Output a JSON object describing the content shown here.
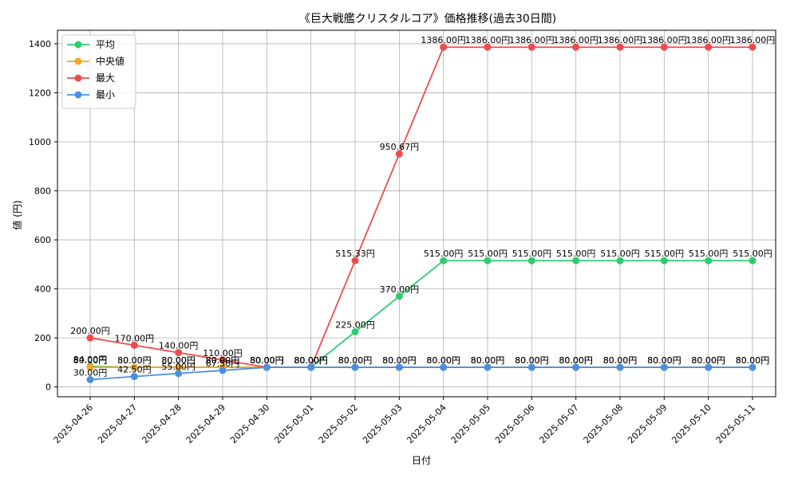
{
  "chart_data": {
    "type": "line",
    "title": "《巨大戦艦クリスタルコア》価格推移(過去30日間)",
    "xlabel": "日付",
    "ylabel": "値 (円)",
    "ylim": [
      -40,
      1455
    ],
    "yticks": [
      0,
      200,
      400,
      600,
      800,
      1000,
      1200,
      1400
    ],
    "grid": true,
    "legend_position": "top-left",
    "unit_suffix": "円",
    "categories": [
      "2025-04-26",
      "2025-04-27",
      "2025-04-28",
      "2025-04-29",
      "2025-04-30",
      "2025-05-01",
      "2025-05-02",
      "2025-05-03",
      "2025-05-04",
      "2025-05-05",
      "2025-05-06",
      "2025-05-07",
      "2025-05-08",
      "2025-05-09",
      "2025-05-10",
      "2025-05-11"
    ],
    "series": [
      {
        "name": "平均",
        "color": "#2ecc71",
        "values": [
          84,
          80,
          80,
          80,
          80,
          80,
          225,
          370,
          515,
          515,
          515,
          515,
          515,
          515,
          515,
          515
        ]
      },
      {
        "name": "中央値",
        "color": "#f5a623",
        "values": [
          80,
          80,
          80,
          80,
          80,
          80,
          80,
          80,
          80,
          80,
          80,
          80,
          80,
          80,
          80,
          80
        ]
      },
      {
        "name": "最大",
        "color": "#f04b4b",
        "values": [
          200,
          170,
          140,
          110,
          80,
          80,
          515.33,
          950.67,
          1386,
          1386,
          1386,
          1386,
          1386,
          1386,
          1386,
          1386
        ]
      },
      {
        "name": "最小",
        "color": "#4a90e2",
        "values": [
          30,
          42.5,
          55,
          67.5,
          80,
          80,
          80,
          80,
          80,
          80,
          80,
          80,
          80,
          80,
          80,
          80
        ]
      }
    ]
  }
}
